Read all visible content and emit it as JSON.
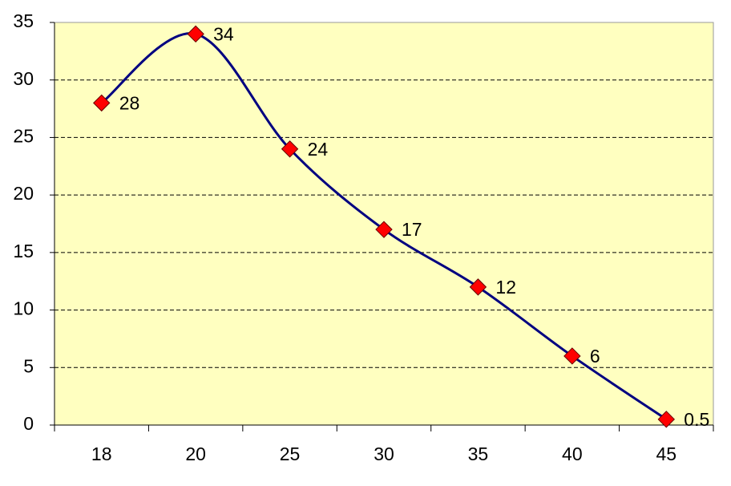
{
  "chart_data": {
    "type": "line",
    "categories": [
      "18",
      "20",
      "25",
      "30",
      "35",
      "40",
      "45"
    ],
    "values": [
      28,
      34,
      24,
      17,
      12,
      6,
      0.5
    ],
    "color": "#000080",
    "marker_color": "#ff0000",
    "plot_background": "#ffffc0",
    "ylim": [
      0,
      35
    ],
    "yticks": [
      0,
      5,
      10,
      15,
      20,
      25,
      30,
      35
    ],
    "grid": true,
    "smooth": true
  }
}
